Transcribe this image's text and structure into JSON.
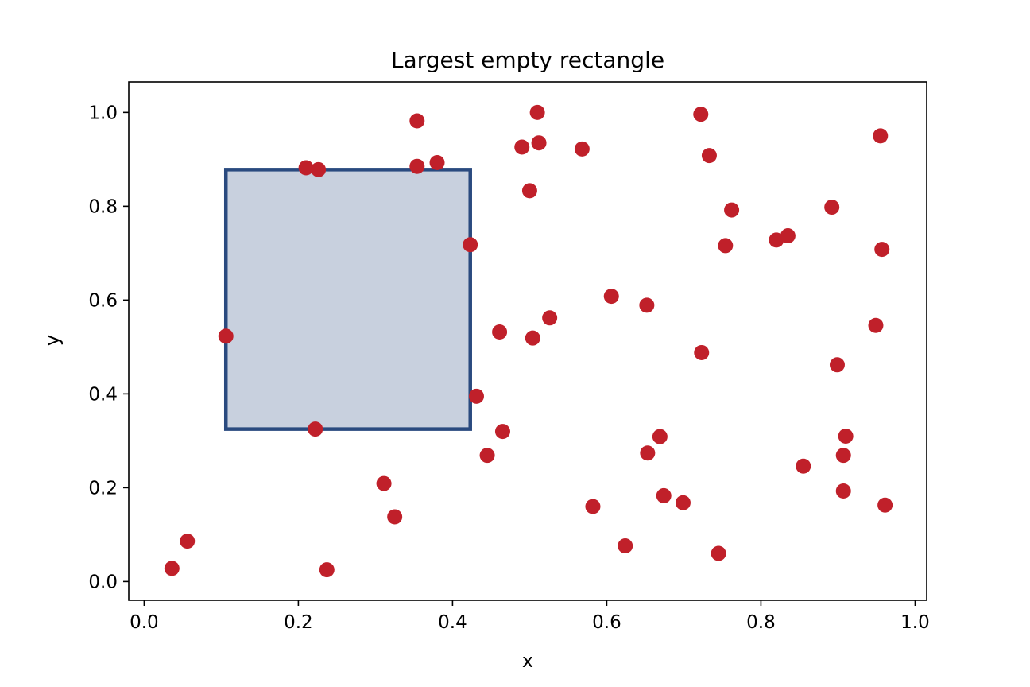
{
  "chart_data": {
    "type": "scatter",
    "title": "Largest empty rectangle",
    "xlabel": "x",
    "ylabel": "y",
    "xlim": [
      -0.02,
      1.015
    ],
    "ylim": [
      -0.04,
      1.065
    ],
    "xticks": [
      0.0,
      0.2,
      0.4,
      0.6,
      0.8,
      1.0
    ],
    "xtick_labels": [
      "0.0",
      "0.2",
      "0.4",
      "0.6",
      "0.8",
      "1.0"
    ],
    "yticks": [
      0.0,
      0.2,
      0.4,
      0.6,
      0.8,
      1.0
    ],
    "ytick_labels": [
      "0.0",
      "0.2",
      "0.4",
      "0.6",
      "0.8",
      "1.0"
    ],
    "grid": false,
    "rectangle": {
      "x0": 0.106,
      "x1": 0.423,
      "y0": 0.325,
      "y1": 0.878,
      "fill": "#c8d0de",
      "edge": "#2a4a7f"
    },
    "point_color": "#c0202a",
    "points": [
      {
        "x": 0.036,
        "y": 0.028
      },
      {
        "x": 0.056,
        "y": 0.086
      },
      {
        "x": 0.106,
        "y": 0.523
      },
      {
        "x": 0.21,
        "y": 0.882
      },
      {
        "x": 0.226,
        "y": 0.878
      },
      {
        "x": 0.222,
        "y": 0.325
      },
      {
        "x": 0.237,
        "y": 0.025
      },
      {
        "x": 0.311,
        "y": 0.209
      },
      {
        "x": 0.325,
        "y": 0.138
      },
      {
        "x": 0.354,
        "y": 0.982
      },
      {
        "x": 0.354,
        "y": 0.885
      },
      {
        "x": 0.38,
        "y": 0.893
      },
      {
        "x": 0.423,
        "y": 0.718
      },
      {
        "x": 0.431,
        "y": 0.395
      },
      {
        "x": 0.445,
        "y": 0.269
      },
      {
        "x": 0.461,
        "y": 0.532
      },
      {
        "x": 0.465,
        "y": 0.32
      },
      {
        "x": 0.49,
        "y": 0.926
      },
      {
        "x": 0.5,
        "y": 0.833
      },
      {
        "x": 0.504,
        "y": 0.519
      },
      {
        "x": 0.51,
        "y": 1.0
      },
      {
        "x": 0.512,
        "y": 0.935
      },
      {
        "x": 0.526,
        "y": 0.562
      },
      {
        "x": 0.568,
        "y": 0.922
      },
      {
        "x": 0.582,
        "y": 0.16
      },
      {
        "x": 0.606,
        "y": 0.608
      },
      {
        "x": 0.624,
        "y": 0.076
      },
      {
        "x": 0.652,
        "y": 0.589
      },
      {
        "x": 0.653,
        "y": 0.274
      },
      {
        "x": 0.669,
        "y": 0.309
      },
      {
        "x": 0.674,
        "y": 0.183
      },
      {
        "x": 0.699,
        "y": 0.168
      },
      {
        "x": 0.722,
        "y": 0.996
      },
      {
        "x": 0.723,
        "y": 0.488
      },
      {
        "x": 0.733,
        "y": 0.908
      },
      {
        "x": 0.745,
        "y": 0.06
      },
      {
        "x": 0.754,
        "y": 0.716
      },
      {
        "x": 0.762,
        "y": 0.792
      },
      {
        "x": 0.82,
        "y": 0.728
      },
      {
        "x": 0.835,
        "y": 0.737
      },
      {
        "x": 0.855,
        "y": 0.246
      },
      {
        "x": 0.892,
        "y": 0.798
      },
      {
        "x": 0.899,
        "y": 0.462
      },
      {
        "x": 0.907,
        "y": 0.193
      },
      {
        "x": 0.907,
        "y": 0.269
      },
      {
        "x": 0.91,
        "y": 0.31
      },
      {
        "x": 0.949,
        "y": 0.546
      },
      {
        "x": 0.955,
        "y": 0.95
      },
      {
        "x": 0.957,
        "y": 0.708
      },
      {
        "x": 0.961,
        "y": 0.163
      }
    ]
  }
}
